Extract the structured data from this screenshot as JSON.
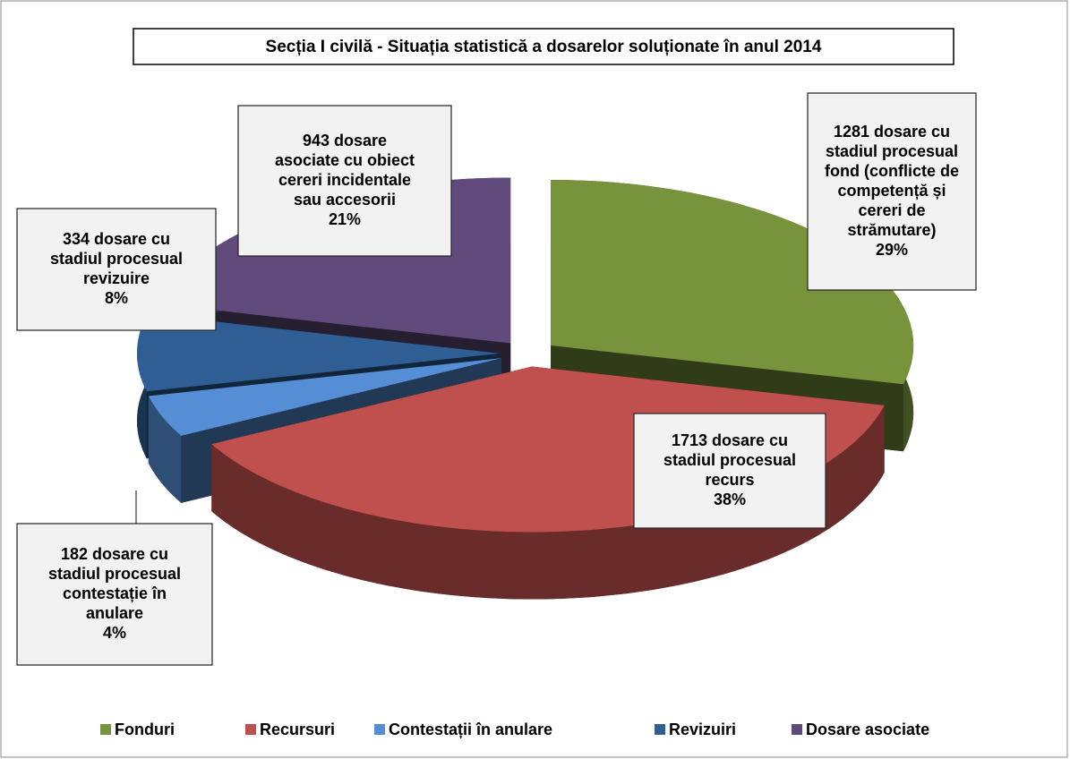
{
  "chart_data": {
    "type": "pie3d",
    "title": "Secția I civilă - Situația statistică a dosarelor soluționate în anul 2014",
    "categories": [
      "Fonduri",
      "Recursuri",
      "Contestații în anulare",
      "Revizuiri",
      "Dosare asociate"
    ],
    "values": [
      1281,
      1713,
      182,
      334,
      943
    ],
    "colors": [
      "#77933c",
      "#c0504d",
      "#558ed5",
      "#2e5e94",
      "#604a7b"
    ],
    "label_lines": [
      [
        "1281 dosare cu",
        "stadiul procesual",
        "fond (conflicte de",
        "competență și",
        "cereri de",
        "strămutare)"
      ],
      [
        "1713 dosare cu",
        "stadiul procesual",
        "recurs"
      ],
      [
        "182 dosare cu",
        "stadiul procesual",
        "contestație în",
        "anulare"
      ],
      [
        "334 dosare cu",
        "stadiul procesual",
        "revizuire"
      ],
      [
        "943 dosare",
        "asociate cu obiect",
        "cereri incidentale",
        "sau accesorii"
      ]
    ],
    "percent_labels": [
      "29%",
      "38%",
      "4%",
      "8%",
      "21%"
    ],
    "legend": "bottom"
  }
}
